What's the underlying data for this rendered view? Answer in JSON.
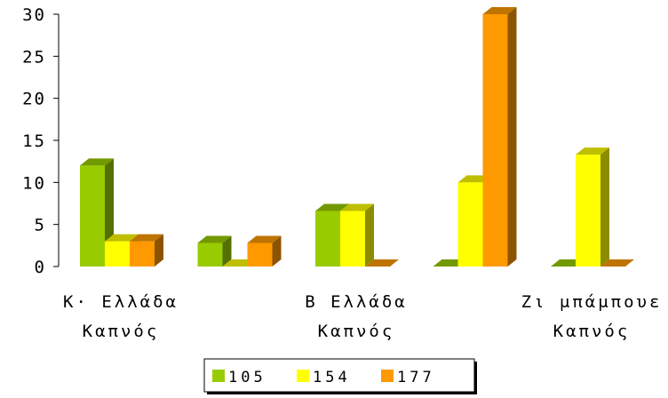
{
  "chart_data": {
    "type": "bar",
    "style": "3d-clustered",
    "groups": [
      "Κ. Ελλάδα Καπνός",
      "",
      "Β Ελλάδα Καπνός",
      "",
      "Ζι μπάμπουε Καπνός"
    ],
    "category_labels": [
      {
        "group": 0,
        "lines": [
          "Κ· Ελλάδα",
          "Καπνός"
        ]
      },
      {
        "group": 2,
        "lines": [
          "Β Ελλάδα",
          "Καπνός"
        ]
      },
      {
        "group": 4,
        "lines": [
          "Ζι μπάμπουε",
          "Καπνός"
        ]
      }
    ],
    "series": [
      {
        "name": "105",
        "color": "#99cc00",
        "values": [
          12,
          2.8,
          6.6,
          0,
          0
        ]
      },
      {
        "name": "154",
        "color": "#ffff00",
        "values": [
          3,
          0,
          6.6,
          10,
          13.3
        ]
      },
      {
        "name": "177",
        "color": "#ff9900",
        "values": [
          3,
          2.8,
          0,
          30,
          0
        ]
      }
    ],
    "ylim": [
      0,
      30
    ],
    "yticks": [
      "0",
      "5",
      "10",
      "15",
      "20",
      "25",
      "30"
    ],
    "grid": false,
    "legend_position": "bottom"
  }
}
